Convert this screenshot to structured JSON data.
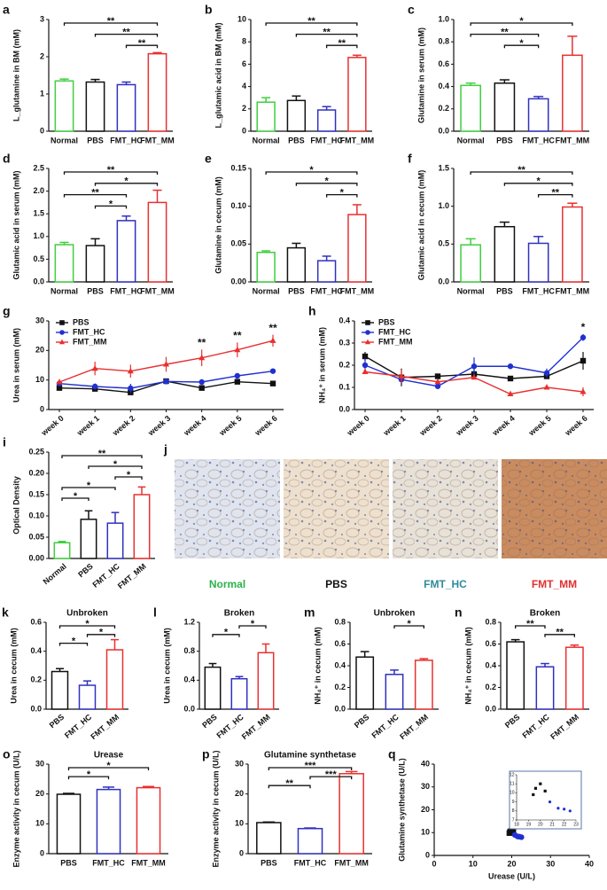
{
  "chart_data": [
    {
      "type": "bar",
      "label": "a",
      "ylabel": "L_glutamine in BM (mM)",
      "categories": [
        "Normal",
        "PBS",
        "FMT_HC",
        "FMT_MM"
      ],
      "colors": [
        "#3fcf3f",
        "#111111",
        "#3030c0",
        "#e83030"
      ],
      "values": [
        1.35,
        1.32,
        1.25,
        2.08
      ],
      "errors": [
        0.05,
        0.07,
        0.07,
        0.03
      ],
      "ylim": [
        0,
        3
      ],
      "yticks": [
        0,
        1,
        2,
        3
      ],
      "comparisons": [
        {
          "between": [
            "Normal",
            "FMT_MM"
          ],
          "label": "**"
        },
        {
          "between": [
            "PBS",
            "FMT_MM"
          ],
          "label": "**"
        },
        {
          "between": [
            "FMT_HC",
            "FMT_MM"
          ],
          "label": "**"
        }
      ]
    },
    {
      "type": "bar",
      "label": "b",
      "ylabel": "L_glutamic acid in BM (mM)",
      "categories": [
        "Normal",
        "PBS",
        "FMT_HC",
        "FMT_MM"
      ],
      "colors": [
        "#3fcf3f",
        "#111111",
        "#3030c0",
        "#e83030"
      ],
      "values": [
        2.6,
        2.75,
        1.9,
        6.6
      ],
      "errors": [
        0.4,
        0.4,
        0.3,
        0.2
      ],
      "ylim": [
        0,
        10
      ],
      "yticks": [
        0,
        2,
        4,
        6,
        8,
        10
      ],
      "comparisons": [
        {
          "between": [
            "Normal",
            "FMT_MM"
          ],
          "label": "**"
        },
        {
          "between": [
            "PBS",
            "FMT_MM"
          ],
          "label": "**"
        },
        {
          "between": [
            "FMT_HC",
            "FMT_MM"
          ],
          "label": "**"
        }
      ]
    },
    {
      "type": "bar",
      "label": "c",
      "ylabel": "Glutamine in serum (mM)",
      "categories": [
        "Normal",
        "PBS",
        "FMT_HC",
        "FMT_MM"
      ],
      "colors": [
        "#3fcf3f",
        "#111111",
        "#3030c0",
        "#e83030"
      ],
      "values": [
        0.41,
        0.43,
        0.29,
        0.68
      ],
      "errors": [
        0.02,
        0.03,
        0.02,
        0.17
      ],
      "ylim": [
        0,
        1
      ],
      "yticks": [
        {
          "value": 0,
          "label": "0.0"
        },
        0.2,
        0.4,
        0.6,
        0.8,
        {
          "value": 1,
          "label": "1.0"
        }
      ],
      "comparisons": [
        {
          "between": [
            "Normal",
            "FMT_MM"
          ],
          "label": "*"
        },
        {
          "between": [
            "Normal",
            "FMT_HC"
          ],
          "label": "**"
        },
        {
          "between": [
            "PBS",
            "FMT_HC"
          ],
          "label": "*"
        }
      ]
    },
    {
      "type": "bar",
      "label": "d",
      "ylabel": "Glutamic acid in serum (mM)",
      "categories": [
        "Normal",
        "PBS",
        "FMT_HC",
        "FMT_MM"
      ],
      "colors": [
        "#3fcf3f",
        "#111111",
        "#3030c0",
        "#e83030"
      ],
      "values": [
        0.82,
        0.8,
        1.35,
        1.75
      ],
      "errors": [
        0.05,
        0.15,
        0.1,
        0.27
      ],
      "ylim": [
        0,
        2.5
      ],
      "yticks": [
        {
          "value": 0,
          "label": "0.0"
        },
        0.5,
        {
          "value": 1,
          "label": "1.0"
        },
        1.5,
        {
          "value": 2,
          "label": "2.0"
        },
        2.5
      ],
      "comparisons": [
        {
          "between": [
            "Normal",
            "FMT_MM"
          ],
          "label": "**"
        },
        {
          "between": [
            "PBS",
            "FMT_MM"
          ],
          "label": "*"
        },
        {
          "between": [
            "Normal",
            "FMT_HC"
          ],
          "label": "**"
        },
        {
          "between": [
            "PBS",
            "FMT_HC"
          ],
          "label": "*"
        }
      ]
    },
    {
      "type": "bar",
      "label": "e",
      "ylabel": "Glutamine in cecum (mM)",
      "categories": [
        "Normal",
        "PBS",
        "FMT_HC",
        "FMT_MM"
      ],
      "colors": [
        "#3fcf3f",
        "#111111",
        "#3030c0",
        "#e83030"
      ],
      "values": [
        0.039,
        0.045,
        0.028,
        0.089
      ],
      "errors": [
        0.002,
        0.006,
        0.006,
        0.013
      ],
      "ylim": [
        0,
        0.15
      ],
      "yticks": [
        {
          "value": 0,
          "label": "0.00"
        },
        0.05,
        {
          "value": 0.1,
          "label": "0.10"
        },
        0.15
      ],
      "comparisons": [
        {
          "between": [
            "Normal",
            "FMT_MM"
          ],
          "label": "*"
        },
        {
          "between": [
            "PBS",
            "FMT_MM"
          ],
          "label": "*"
        },
        {
          "between": [
            "FMT_HC",
            "FMT_MM"
          ],
          "label": "*"
        }
      ]
    },
    {
      "type": "bar",
      "label": "f",
      "ylabel": "Glutamic acid in cecum (mM)",
      "categories": [
        "Normal",
        "PBS",
        "FMT_HC",
        "FMT_MM"
      ],
      "colors": [
        "#3fcf3f",
        "#111111",
        "#3030c0",
        "#e83030"
      ],
      "values": [
        0.49,
        0.73,
        0.51,
        0.99
      ],
      "errors": [
        0.08,
        0.06,
        0.09,
        0.05
      ],
      "ylim": [
        0,
        1.5
      ],
      "yticks": [
        {
          "value": 0,
          "label": "0.0"
        },
        0.5,
        {
          "value": 1,
          "label": "1.0"
        },
        1.5
      ],
      "comparisons": [
        {
          "between": [
            "Normal",
            "FMT_MM"
          ],
          "label": "**"
        },
        {
          "between": [
            "PBS",
            "FMT_MM"
          ],
          "label": "*"
        },
        {
          "between": [
            "FMT_HC",
            "FMT_MM"
          ],
          "label": "**"
        }
      ]
    },
    {
      "type": "line",
      "label": "g",
      "ylabel": "Urea in serum (mM)",
      "categories": [
        "week 0",
        "week 1",
        "week 2",
        "week 3",
        "week 4",
        "week 5",
        "week 6"
      ],
      "ylim": [
        0,
        30
      ],
      "yticks": [
        0,
        10,
        20,
        30
      ],
      "legend": "top-left",
      "series": [
        {
          "name": "PBS",
          "color": "#111111",
          "marker": "square",
          "values": [
            7.3,
            7.0,
            5.8,
            9.6,
            7.3,
            9.4,
            8.8
          ],
          "errors": [
            0.5,
            0.8,
            0.6,
            0.4,
            0.6,
            0.8,
            0.5
          ]
        },
        {
          "name": "FMT_HC",
          "color": "#2030d0",
          "marker": "circle",
          "values": [
            8.8,
            7.8,
            7.2,
            9.5,
            9.3,
            11.4,
            13.0
          ],
          "errors": [
            0.6,
            1.0,
            1.5,
            0.5,
            0.8,
            0.5,
            0.4
          ]
        },
        {
          "name": "FMT_MM",
          "color": "#e83030",
          "marker": "triangle",
          "values": [
            9.3,
            13.9,
            13.0,
            15.3,
            17.5,
            20.2,
            23.3
          ],
          "errors": [
            0.5,
            2.3,
            2.2,
            2.5,
            2.8,
            2.5,
            2.0
          ]
        }
      ],
      "annotations": [
        {
          "at": "week 4",
          "label": "**"
        },
        {
          "at": "week 5",
          "label": "**"
        },
        {
          "at": "week 6",
          "label": "**"
        }
      ]
    },
    {
      "type": "line",
      "label": "h",
      "ylabel": "NH₄⁺ in serum (mM)",
      "categories": [
        "week 0",
        "week 1",
        "week 2",
        "week 3",
        "week 4",
        "week 5",
        "week 6"
      ],
      "ylim": [
        0,
        0.4
      ],
      "yticks": [
        {
          "value": 0,
          "label": "0.0"
        },
        0.1,
        0.2,
        0.3,
        0.4
      ],
      "legend": "top-left",
      "series": [
        {
          "name": "PBS",
          "color": "#111111",
          "marker": "square",
          "values": [
            0.24,
            0.145,
            0.15,
            0.16,
            0.14,
            0.15,
            0.22
          ],
          "errors": [
            0.02,
            0.04,
            0.01,
            0.02,
            0.01,
            0.01,
            0.04
          ]
        },
        {
          "name": "FMT_HC",
          "color": "#2030d0",
          "marker": "circle",
          "values": [
            0.2,
            0.135,
            0.105,
            0.195,
            0.195,
            0.165,
            0.325
          ],
          "errors": [
            0.03,
            0.01,
            0.01,
            0.04,
            0.01,
            0.02,
            0.015
          ]
        },
        {
          "name": "FMT_MM",
          "color": "#e83030",
          "marker": "triangle",
          "values": [
            0.17,
            0.15,
            0.125,
            0.145,
            0.07,
            0.1,
            0.08
          ],
          "errors": [
            0.01,
            0.03,
            0.01,
            0.005,
            0.005,
            0.01,
            0.02
          ]
        }
      ],
      "annotations": [
        {
          "at": "week 6",
          "label": "*"
        }
      ]
    },
    {
      "type": "bar",
      "label": "i",
      "ylabel": "Optical Density",
      "categories": [
        "Normal",
        "PBS",
        "FMT_HC",
        "FMT_MM"
      ],
      "colors": [
        "#3fcf3f",
        "#111111",
        "#3030c0",
        "#e83030"
      ],
      "values": [
        0.037,
        0.092,
        0.083,
        0.15
      ],
      "errors": [
        0.003,
        0.02,
        0.025,
        0.018
      ],
      "ylim": [
        0,
        0.25
      ],
      "yticks": [
        {
          "value": 0,
          "label": "0.00"
        },
        0.05,
        {
          "value": 0.1,
          "label": "0.10"
        },
        0.15,
        {
          "value": 0.2,
          "label": "0.20"
        },
        0.25
      ],
      "comparisons": [
        {
          "between": [
            "Normal",
            "FMT_MM"
          ],
          "label": "**"
        },
        {
          "between": [
            "PBS",
            "FMT_MM"
          ],
          "label": "*"
        },
        {
          "between": [
            "FMT_HC",
            "FMT_MM"
          ],
          "label": "*"
        },
        {
          "between": [
            "Normal",
            "FMT_HC"
          ],
          "label": "*"
        },
        {
          "between": [
            "Normal",
            "PBS"
          ],
          "label": "*"
        }
      ]
    },
    {
      "type": "micrograph",
      "label": "j",
      "panels": [
        {
          "name": "Normal",
          "color": "#2db34a",
          "tone": "#dfe4ee"
        },
        {
          "name": "PBS",
          "color": "#111111",
          "tone": "#eee0cf"
        },
        {
          "name": "FMT_HC",
          "color": "#2e8b9a",
          "tone": "#e7e1d8"
        },
        {
          "name": "FMT_MM",
          "color": "#e03030",
          "tone": "#c98b60"
        }
      ]
    },
    {
      "type": "bar",
      "label": "k",
      "title": "Unbroken",
      "ylabel": "Urea in cecum (mM)",
      "categories": [
        "PBS",
        "FMT_HC",
        "FMT_MM"
      ],
      "colors": [
        "#111111",
        "#3030c0",
        "#e83030"
      ],
      "values": [
        0.26,
        0.165,
        0.41
      ],
      "errors": [
        0.02,
        0.03,
        0.07
      ],
      "ylim": [
        0,
        0.6
      ],
      "yticks": [
        {
          "value": 0,
          "label": "0.0"
        },
        0.2,
        0.4,
        0.6
      ],
      "comparisons": [
        {
          "between": [
            "PBS",
            "FMT_MM"
          ],
          "label": "*"
        },
        {
          "between": [
            "FMT_HC",
            "FMT_MM"
          ],
          "label": "*"
        },
        {
          "between": [
            "PBS",
            "FMT_HC"
          ],
          "label": "*"
        }
      ]
    },
    {
      "type": "bar",
      "label": "l",
      "title": "Broken",
      "ylabel": "Urea in cecum (mM)",
      "categories": [
        "PBS",
        "FMT_HC",
        "FMT_MM"
      ],
      "colors": [
        "#111111",
        "#3030c0",
        "#e83030"
      ],
      "values": [
        0.58,
        0.42,
        0.78
      ],
      "errors": [
        0.05,
        0.03,
        0.12
      ],
      "ylim": [
        0,
        1.2
      ],
      "yticks": [
        {
          "value": 0,
          "label": "0.0"
        },
        0.4,
        0.8,
        1.2
      ],
      "comparisons": [
        {
          "between": [
            "FMT_HC",
            "FMT_MM"
          ],
          "label": "*"
        },
        {
          "between": [
            "PBS",
            "FMT_HC"
          ],
          "label": "*"
        }
      ]
    },
    {
      "type": "bar",
      "label": "m",
      "title": "Unbroken",
      "ylabel": "NH₄⁺ in cecum (mM)",
      "categories": [
        "PBS",
        "FMT_HC",
        "FMT_MM"
      ],
      "colors": [
        "#111111",
        "#3030c0",
        "#e83030"
      ],
      "values": [
        0.48,
        0.32,
        0.45
      ],
      "errors": [
        0.05,
        0.04,
        0.015
      ],
      "ylim": [
        0,
        0.8
      ],
      "yticks": [
        {
          "value": 0,
          "label": "0.0"
        },
        0.2,
        0.4,
        0.6,
        0.8
      ],
      "comparisons": [
        {
          "between": [
            "FMT_HC",
            "FMT_MM"
          ],
          "label": "*"
        }
      ]
    },
    {
      "type": "bar",
      "label": "n",
      "title": "Broken",
      "ylabel": "NH₄⁺ in cecum (mM)",
      "categories": [
        "PBS",
        "FMT_HC",
        "FMT_MM"
      ],
      "colors": [
        "#111111",
        "#3030c0",
        "#e83030"
      ],
      "values": [
        0.62,
        0.39,
        0.57
      ],
      "errors": [
        0.02,
        0.03,
        0.02
      ],
      "ylim": [
        0,
        0.8
      ],
      "yticks": [
        {
          "value": 0,
          "label": "0.0"
        },
        0.2,
        0.4,
        0.6,
        0.8
      ],
      "comparisons": [
        {
          "between": [
            "PBS",
            "FMT_HC"
          ],
          "label": "**"
        },
        {
          "between": [
            "FMT_HC",
            "FMT_MM"
          ],
          "label": "**"
        }
      ]
    },
    {
      "type": "bar",
      "label": "o",
      "title": "Urease",
      "ylabel": "Enzyme activity in cecum (U/L)",
      "categories": [
        "PBS",
        "FMT_HC",
        "FMT_MM"
      ],
      "colors": [
        "#111111",
        "#3030c0",
        "#e83030"
      ],
      "values": [
        19.9,
        21.5,
        22.1
      ],
      "errors": [
        0.3,
        0.8,
        0.4
      ],
      "ylim": [
        0,
        30
      ],
      "yticks": [
        0,
        10,
        20,
        30
      ],
      "comparisons": [
        {
          "between": [
            "PBS",
            "FMT_MM"
          ],
          "label": "*"
        },
        {
          "between": [
            "PBS",
            "FMT_HC"
          ],
          "label": "*"
        }
      ]
    },
    {
      "type": "bar",
      "label": "p",
      "title": "Glutamine synthetase",
      "ylabel": "Enzyme activity in cecum (U/L)",
      "categories": [
        "PBS",
        "FMT_HC",
        "FMT_MM"
      ],
      "colors": [
        "#111111",
        "#3030c0",
        "#e83030"
      ],
      "values": [
        10.4,
        8.4,
        26.8
      ],
      "errors": [
        0.2,
        0.2,
        0.7
      ],
      "ylim": [
        0,
        30
      ],
      "yticks": [
        0,
        10,
        20,
        30
      ],
      "comparisons": [
        {
          "between": [
            "PBS",
            "FMT_MM"
          ],
          "label": "***"
        },
        {
          "between": [
            "FMT_HC",
            "FMT_MM"
          ],
          "label": "***"
        },
        {
          "between": [
            "PBS",
            "FMT_HC"
          ],
          "label": "**"
        }
      ]
    },
    {
      "type": "scatter",
      "label": "q",
      "xlabel": "Urease (U/L)",
      "ylabel": "Glutamine synthetase (U/L)",
      "xlim": [
        0,
        40
      ],
      "xticks": [
        0,
        10,
        20,
        30,
        40
      ],
      "ylim": [
        0,
        40
      ],
      "yticks": [
        0,
        10,
        20,
        30,
        40
      ],
      "series": [
        {
          "color": "#111111",
          "marker": "square",
          "x": [
            19.6,
            20.0,
            19.4,
            20.4
          ],
          "y": [
            10.5,
            11.0,
            9.8,
            10.2
          ]
        },
        {
          "color": "#2030d0",
          "marker": "circle",
          "x": [
            20.8,
            21.5,
            22.0,
            22.5
          ],
          "y": [
            9.0,
            8.3,
            8.2,
            8.0
          ]
        },
        {
          "color": "#e83030",
          "marker": "triangle",
          "x": [
            20.5,
            22.0,
            23.0
          ],
          "y": [
            28.0,
            26.0,
            25.0
          ]
        }
      ],
      "inset": {
        "xlim": [
          18,
          23
        ],
        "xticks": [
          18,
          19,
          20,
          21,
          22,
          23
        ],
        "ylim": [
          7,
          12
        ],
        "yticks": [
          7,
          8,
          9,
          10,
          11,
          12
        ]
      }
    }
  ]
}
